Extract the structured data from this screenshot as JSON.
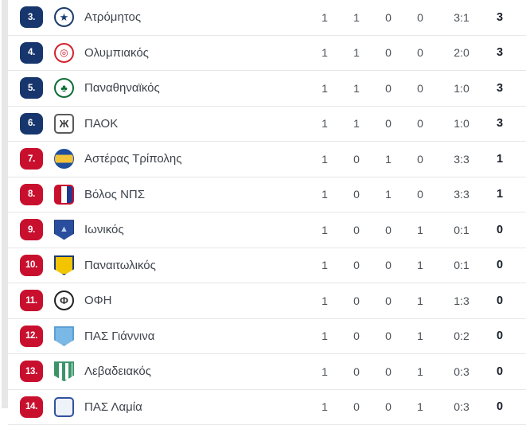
{
  "colors": {
    "zone_top_badge": "#17366d",
    "zone_bottom_badge": "#c8102e",
    "row_separator": "#e7e7e7",
    "points_text": "#1a212b",
    "team_text": "#3d434c"
  },
  "table": {
    "rows": [
      {
        "rank": "3.",
        "team": "Ατρόμητος",
        "played": "1",
        "wins": "1",
        "draws": "0",
        "losses": "0",
        "goals": "3:1",
        "points": "3",
        "zone": "blue"
      },
      {
        "rank": "4.",
        "team": "Ολυμπιακός",
        "played": "1",
        "wins": "1",
        "draws": "0",
        "losses": "0",
        "goals": "2:0",
        "points": "3",
        "zone": "blue"
      },
      {
        "rank": "5.",
        "team": "Παναθηναϊκός",
        "played": "1",
        "wins": "1",
        "draws": "0",
        "losses": "0",
        "goals": "1:0",
        "points": "3",
        "zone": "blue"
      },
      {
        "rank": "6.",
        "team": "ΠΑΟΚ",
        "played": "1",
        "wins": "1",
        "draws": "0",
        "losses": "0",
        "goals": "1:0",
        "points": "3",
        "zone": "blue"
      },
      {
        "rank": "7.",
        "team": "Αστέρας Τρίπολης",
        "played": "1",
        "wins": "0",
        "draws": "1",
        "losses": "0",
        "goals": "3:3",
        "points": "1",
        "zone": "red"
      },
      {
        "rank": "8.",
        "team": "Βόλος ΝΠΣ",
        "played": "1",
        "wins": "0",
        "draws": "1",
        "losses": "0",
        "goals": "3:3",
        "points": "1",
        "zone": "red"
      },
      {
        "rank": "9.",
        "team": "Ιωνικός",
        "played": "1",
        "wins": "0",
        "draws": "0",
        "losses": "1",
        "goals": "0:1",
        "points": "0",
        "zone": "red"
      },
      {
        "rank": "10.",
        "team": "Παναιτωλικός",
        "played": "1",
        "wins": "0",
        "draws": "0",
        "losses": "1",
        "goals": "0:1",
        "points": "0",
        "zone": "red"
      },
      {
        "rank": "11.",
        "team": "ΟΦΗ",
        "played": "1",
        "wins": "0",
        "draws": "0",
        "losses": "1",
        "goals": "1:3",
        "points": "0",
        "zone": "red"
      },
      {
        "rank": "12.",
        "team": "ΠΑΣ Γιάννινα",
        "played": "1",
        "wins": "0",
        "draws": "0",
        "losses": "1",
        "goals": "0:2",
        "points": "0",
        "zone": "red"
      },
      {
        "rank": "13.",
        "team": "Λεβαδειακός",
        "played": "1",
        "wins": "0",
        "draws": "0",
        "losses": "1",
        "goals": "0:3",
        "points": "0",
        "zone": "red"
      },
      {
        "rank": "14.",
        "team": "ΠΑΣ Λαμία",
        "played": "1",
        "wins": "0",
        "draws": "0",
        "losses": "1",
        "goals": "0:3",
        "points": "0",
        "zone": "red"
      }
    ],
    "logo_glyphs": {
      "atromitos": "star",
      "olympiakos": "wreath-ring",
      "panathinaikos": "shamrock",
      "paok": "double-headed-eagle",
      "asteras": "blue-yellow-disc",
      "volos": "red-blue-crest",
      "ionikos": "blue-shield",
      "panaitolikos": "yellow-shield",
      "ofi": "black-white-disc",
      "giannina": "sky-blue-shield",
      "levadiakos": "green-striped-shield",
      "lamia": "blue-white-crest"
    }
  }
}
